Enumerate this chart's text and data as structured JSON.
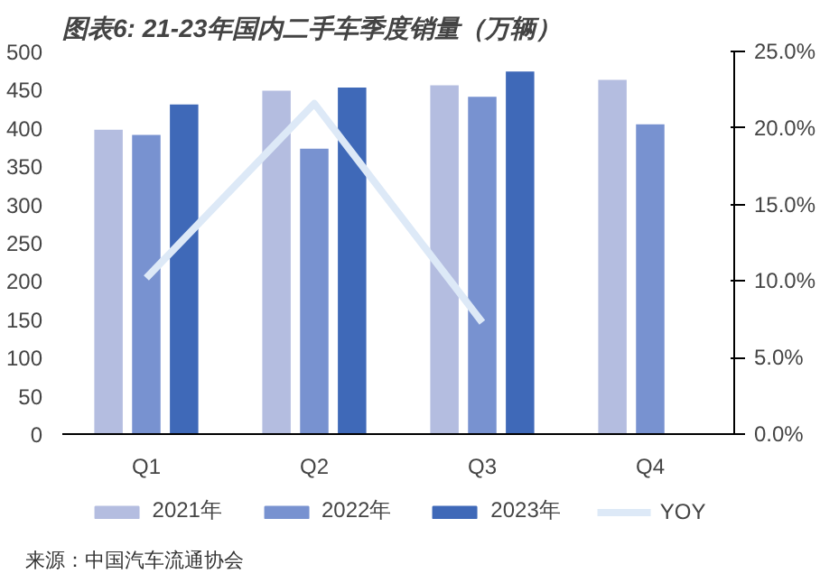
{
  "chart_data": {
    "type": "bar",
    "title": "图表6: 21-23年国内二手车季度销量（万辆）",
    "categories": [
      "Q1",
      "Q2",
      "Q3",
      "Q4"
    ],
    "series": [
      {
        "name": "2021年",
        "color": "#b4bde0",
        "values": [
          399,
          450,
          457,
          464
        ]
      },
      {
        "name": "2022年",
        "color": "#7892d0",
        "values": [
          392,
          374,
          442,
          406
        ]
      },
      {
        "name": "2023年",
        "color": "#3f69b8",
        "values": [
          432,
          454,
          475,
          null
        ]
      },
      {
        "name": "YOY",
        "type": "line",
        "axis": "y2",
        "color": "#dde9f7",
        "values": [
          10.2,
          21.6,
          7.3,
          null
        ]
      }
    ],
    "ylim": [
      0,
      500
    ],
    "yticks": [
      0,
      50,
      100,
      150,
      200,
      250,
      300,
      350,
      400,
      450,
      500
    ],
    "y2lim": [
      0,
      25
    ],
    "y2ticks": [
      {
        "value": 0,
        "label": "0.0%"
      },
      {
        "value": 5,
        "label": "5.0%"
      },
      {
        "value": 10,
        "label": "10.0%"
      },
      {
        "value": 15,
        "label": "15.0%"
      },
      {
        "value": 20,
        "label": "20.0%"
      },
      {
        "value": 25,
        "label": "25.0%"
      }
    ],
    "grid": false,
    "legend": "bottom",
    "annotations": [
      "来源：中国汽车流通协会"
    ]
  }
}
